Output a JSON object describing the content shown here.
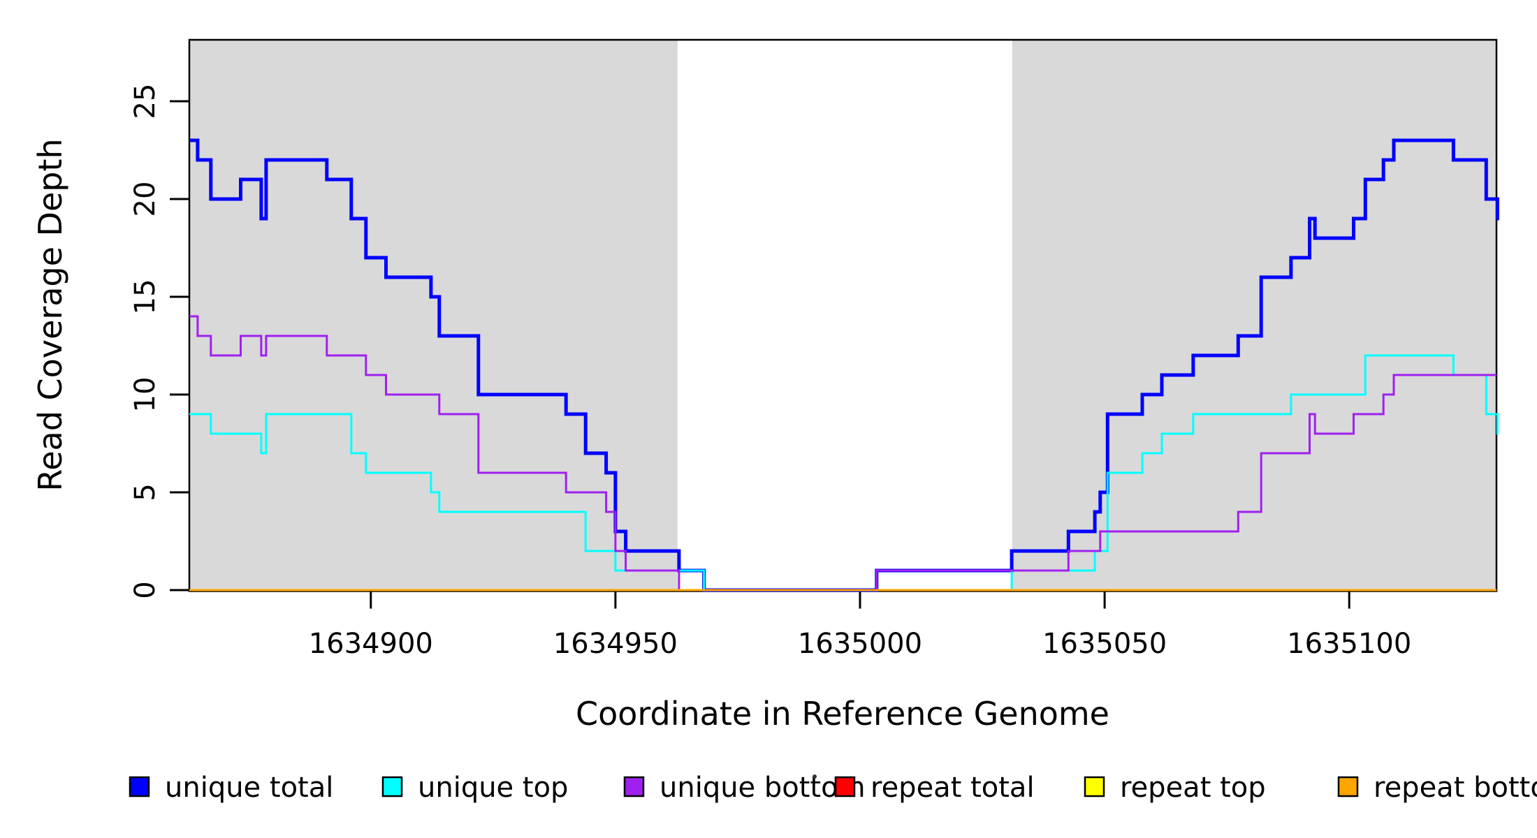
{
  "chart_data": {
    "type": "line",
    "subtype": "step",
    "title": "",
    "xlabel": "Coordinate in Reference Genome",
    "ylabel": "Read Coverage Depth",
    "xlim": [
      1634862.9,
      1635130.1
    ],
    "ylim": [
      0,
      28.2
    ],
    "x_ticks": [
      1634900,
      1634950,
      1635000,
      1635050,
      1635100
    ],
    "y_ticks": [
      0,
      5,
      10,
      15,
      20,
      25
    ],
    "grid": "off",
    "plot_background": "#ffffff",
    "band_color": "#d9d9d9",
    "background_bands": [
      {
        "x0": 1634862.9,
        "x1": 1634962.7
      },
      {
        "x0": 1635031.1,
        "x1": 1635130.1
      }
    ],
    "legend_position": "bottom",
    "series": [
      {
        "name": "unique total",
        "color": "#0000ff",
        "line_width": 5,
        "points": [
          [
            1634862.9,
            23
          ],
          [
            1634864.6,
            22
          ],
          [
            1634867.3,
            20
          ],
          [
            1634873.4,
            21
          ],
          [
            1634877.6,
            19
          ],
          [
            1634878.6,
            22
          ],
          [
            1634891,
            21
          ],
          [
            1634896,
            19
          ],
          [
            1634899,
            17
          ],
          [
            1634903.1,
            16
          ],
          [
            1634912.3,
            15
          ],
          [
            1634914,
            13
          ],
          [
            1634922,
            10
          ],
          [
            1634939.9,
            9
          ],
          [
            1634943.9,
            7
          ],
          [
            1634948.1,
            6
          ],
          [
            1634950,
            3
          ],
          [
            1634952.1,
            2
          ],
          [
            1634963,
            1
          ],
          [
            1634968.1,
            0
          ],
          [
            1635003.4,
            1
          ],
          [
            1635031,
            2
          ],
          [
            1635042.6,
            3
          ],
          [
            1635048,
            4
          ],
          [
            1635049.1,
            5
          ],
          [
            1635050.6,
            9
          ],
          [
            1635057.7,
            10
          ],
          [
            1635061.7,
            11
          ],
          [
            1635068.1,
            12
          ],
          [
            1635077.3,
            13
          ],
          [
            1635082,
            16
          ],
          [
            1635088.1,
            17
          ],
          [
            1635091.9,
            19
          ],
          [
            1635093,
            18
          ],
          [
            1635100.9,
            19
          ],
          [
            1635103.3,
            21
          ],
          [
            1635107,
            22
          ],
          [
            1635109.1,
            23
          ],
          [
            1635121.3,
            22
          ],
          [
            1635128,
            20
          ],
          [
            1635130.3,
            19
          ]
        ]
      },
      {
        "name": "unique top",
        "color": "#00ffff",
        "line_width": 3,
        "points": [
          [
            1634862.9,
            9
          ],
          [
            1634867.3,
            8
          ],
          [
            1634877.6,
            7
          ],
          [
            1634878.6,
            9
          ],
          [
            1634896,
            7
          ],
          [
            1634899,
            6
          ],
          [
            1634912.3,
            5
          ],
          [
            1634914,
            4
          ],
          [
            1634943.9,
            2
          ],
          [
            1634950,
            1
          ],
          [
            1634968.1,
            0
          ],
          [
            1635031,
            1
          ],
          [
            1635048,
            2
          ],
          [
            1635050.6,
            6
          ],
          [
            1635057.7,
            7
          ],
          [
            1635061.7,
            8
          ],
          [
            1635068.1,
            9
          ],
          [
            1635088.1,
            10
          ],
          [
            1635103.3,
            12
          ],
          [
            1635121.3,
            11
          ],
          [
            1635128,
            9
          ],
          [
            1635130.3,
            8
          ]
        ]
      },
      {
        "name": "unique bottom",
        "color": "#a020f0",
        "line_width": 3,
        "points": [
          [
            1634862.9,
            14
          ],
          [
            1634864.6,
            13
          ],
          [
            1634867.3,
            12
          ],
          [
            1634873.4,
            13
          ],
          [
            1634877.6,
            12
          ],
          [
            1634878.6,
            13
          ],
          [
            1634891,
            12
          ],
          [
            1634899,
            11
          ],
          [
            1634903.1,
            10
          ],
          [
            1634914,
            9
          ],
          [
            1634922,
            6
          ],
          [
            1634939.9,
            5
          ],
          [
            1634948.1,
            4
          ],
          [
            1634950,
            2
          ],
          [
            1634952.1,
            1
          ],
          [
            1634963,
            0
          ],
          [
            1635003.4,
            1
          ],
          [
            1635042.6,
            2
          ],
          [
            1635049.1,
            3
          ],
          [
            1635077.3,
            4
          ],
          [
            1635082,
            7
          ],
          [
            1635091.9,
            9
          ],
          [
            1635093,
            8
          ],
          [
            1635100.9,
            9
          ],
          [
            1635107,
            10
          ],
          [
            1635109.1,
            11
          ]
        ]
      },
      {
        "name": "repeat total",
        "color": "#ff0000",
        "line_width": 3,
        "points": [
          [
            1634862.9,
            0
          ]
        ]
      },
      {
        "name": "repeat top",
        "color": "#ffff00",
        "line_width": 3,
        "points": [
          [
            1634862.9,
            0
          ]
        ]
      },
      {
        "name": "repeat bottom",
        "color": "#ffa500",
        "line_width": 3,
        "points": [
          [
            1634862.9,
            0
          ]
        ]
      }
    ],
    "legend_entries": [
      {
        "label": "unique total",
        "color": "#0000ff"
      },
      {
        "label": "unique top",
        "color": "#00ffff"
      },
      {
        "label": "unique bottom",
        "color": "#a020f0"
      },
      {
        "label": "repeat total",
        "color": "#ff0000"
      },
      {
        "label": "repeat top",
        "color": "#ffff00"
      },
      {
        "label": "repeat bottom",
        "color": "#ffa500"
      }
    ]
  }
}
